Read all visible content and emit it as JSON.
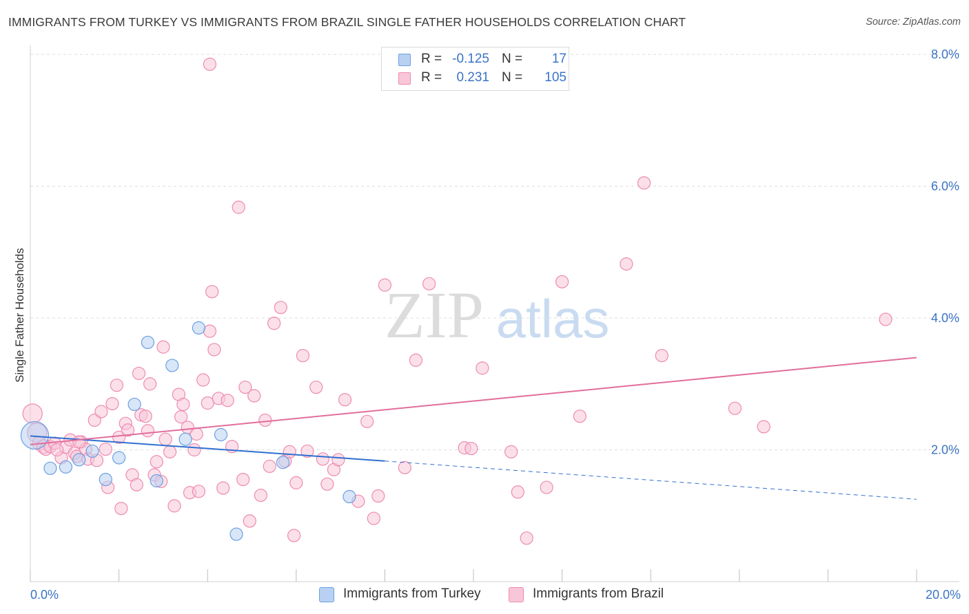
{
  "title": "IMMIGRANTS FROM TURKEY VS IMMIGRANTS FROM BRAZIL SINGLE FATHER HOUSEHOLDS CORRELATION CHART",
  "source": "Source: ZipAtlas.com",
  "watermark": {
    "zip": "ZIP",
    "atlas": "atlas"
  },
  "colors": {
    "turkey": "#6a9fe0",
    "turkey_fill": "#b8d1f3",
    "turkey_line": "#2f6fcf",
    "brazil": "#ee8ab0",
    "brazil_fill": "#f8c6d8",
    "brazil_line": "#e26d9a",
    "axis_text": "#3a73c4"
  },
  "legend": {
    "rows": [
      {
        "r_label": "R =",
        "r_value": "-0.125",
        "n_label": "N =",
        "n_value": "17"
      },
      {
        "r_label": "R =",
        "r_value": "0.231",
        "n_label": "N =",
        "n_value": "105"
      }
    ]
  },
  "bottom_legend": {
    "turkey": "Immigrants from Turkey",
    "brazil": "Immigrants from Brazil"
  },
  "chart_data": {
    "type": "scatter",
    "title": "IMMIGRANTS FROM TURKEY VS IMMIGRANTS FROM BRAZIL SINGLE FATHER HOUSEHOLDS CORRELATION CHART",
    "xlabel": "",
    "ylabel": "Single Father Households",
    "xlim": [
      0,
      20
    ],
    "ylim": [
      0,
      8.0
    ],
    "x_tick_labels": [
      "0.0%",
      "20.0%"
    ],
    "y_ticks": [
      2.0,
      4.0,
      6.0,
      8.0
    ],
    "y_tick_labels": [
      "2.0%",
      "4.0%",
      "6.0%",
      "8.0%"
    ],
    "grid": "horizontal dashed",
    "legend_position": "top-center",
    "series": [
      {
        "name": "Immigrants from Turkey",
        "R": -0.125,
        "N": 17,
        "trend": {
          "x0": 0,
          "y0": 2.21,
          "x1": 8.0,
          "y1": 1.83,
          "dashed_to_x": 20,
          "dashed_to_y": 1.25
        },
        "points": [
          [
            0.1,
            2.22,
            20
          ],
          [
            0.45,
            1.72,
            9
          ],
          [
            0.8,
            1.74,
            9
          ],
          [
            1.1,
            1.85,
            9
          ],
          [
            1.4,
            1.98,
            9
          ],
          [
            1.7,
            1.55,
            9
          ],
          [
            2.0,
            1.88,
            9
          ],
          [
            2.35,
            2.69,
            9
          ],
          [
            2.65,
            3.63,
            9
          ],
          [
            2.85,
            1.53,
            9
          ],
          [
            3.2,
            3.28,
            9
          ],
          [
            3.5,
            2.16,
            9
          ],
          [
            3.8,
            3.85,
            9
          ],
          [
            4.3,
            2.23,
            9
          ],
          [
            4.65,
            0.72,
            9
          ],
          [
            5.7,
            1.81,
            9
          ],
          [
            7.2,
            1.29,
            9
          ]
        ]
      },
      {
        "name": "Immigrants from Brazil",
        "R": 0.231,
        "N": 105,
        "trend": {
          "x0": 0,
          "y0": 2.08,
          "x1": 20,
          "y1": 3.4
        },
        "points": [
          [
            0.05,
            2.55,
            14
          ],
          [
            0.15,
            2.26,
            14
          ],
          [
            0.2,
            2.1,
            10
          ],
          [
            0.3,
            2.05,
            10
          ],
          [
            0.35,
            2.01,
            9
          ],
          [
            0.45,
            2.05,
            9
          ],
          [
            0.55,
            2.1,
            9
          ],
          [
            0.7,
            1.88,
            9
          ],
          [
            0.8,
            2.04,
            9
          ],
          [
            0.9,
            2.15,
            9
          ],
          [
            1.0,
            1.95,
            9
          ],
          [
            1.05,
            1.9,
            9
          ],
          [
            1.15,
            2.12,
            9
          ],
          [
            1.25,
            2.01,
            9
          ],
          [
            1.3,
            1.86,
            9
          ],
          [
            1.45,
            2.45,
            9
          ],
          [
            1.5,
            1.84,
            9
          ],
          [
            1.6,
            2.58,
            9
          ],
          [
            1.7,
            2.01,
            9
          ],
          [
            1.75,
            1.43,
            9
          ],
          [
            1.85,
            2.7,
            9
          ],
          [
            1.95,
            2.98,
            9
          ],
          [
            2.0,
            2.19,
            9
          ],
          [
            2.05,
            1.11,
            9
          ],
          [
            2.15,
            2.4,
            9
          ],
          [
            2.2,
            2.3,
            9
          ],
          [
            2.3,
            1.62,
            9
          ],
          [
            2.4,
            1.47,
            9
          ],
          [
            2.45,
            3.16,
            9
          ],
          [
            2.5,
            2.53,
            9
          ],
          [
            2.6,
            2.51,
            9
          ],
          [
            2.65,
            2.29,
            9
          ],
          [
            2.7,
            3.0,
            9
          ],
          [
            2.8,
            1.62,
            9
          ],
          [
            2.85,
            1.82,
            9
          ],
          [
            2.95,
            1.52,
            9
          ],
          [
            3.0,
            3.56,
            9
          ],
          [
            3.05,
            2.16,
            9
          ],
          [
            3.15,
            1.97,
            9
          ],
          [
            3.25,
            1.15,
            9
          ],
          [
            3.35,
            2.84,
            9
          ],
          [
            3.4,
            2.5,
            9
          ],
          [
            3.45,
            2.69,
            9
          ],
          [
            3.55,
            2.34,
            9
          ],
          [
            3.6,
            1.35,
            9
          ],
          [
            3.7,
            2.0,
            9
          ],
          [
            3.75,
            2.24,
            9
          ],
          [
            3.8,
            1.37,
            9
          ],
          [
            3.9,
            3.06,
            9
          ],
          [
            4.0,
            2.71,
            9
          ],
          [
            4.05,
            3.8,
            9
          ],
          [
            4.1,
            4.4,
            9
          ],
          [
            4.15,
            3.52,
            9
          ],
          [
            4.25,
            2.78,
            9
          ],
          [
            4.35,
            1.42,
            9
          ],
          [
            4.45,
            2.75,
            9
          ],
          [
            4.55,
            2.05,
            9
          ],
          [
            4.7,
            5.68,
            9
          ],
          [
            4.8,
            1.55,
            9
          ],
          [
            4.85,
            2.95,
            9
          ],
          [
            4.95,
            0.92,
            9
          ],
          [
            5.05,
            2.82,
            9
          ],
          [
            5.2,
            1.31,
            9
          ],
          [
            5.3,
            2.45,
            9
          ],
          [
            5.4,
            1.75,
            9
          ],
          [
            5.5,
            3.92,
            9
          ],
          [
            5.65,
            4.16,
            9
          ],
          [
            5.75,
            1.83,
            9
          ],
          [
            5.85,
            1.97,
            9
          ],
          [
            5.95,
            0.7,
            9
          ],
          [
            6.0,
            1.5,
            9
          ],
          [
            6.15,
            3.43,
            9
          ],
          [
            6.25,
            1.98,
            9
          ],
          [
            6.45,
            2.95,
            9
          ],
          [
            6.6,
            1.86,
            9
          ],
          [
            6.7,
            1.48,
            9
          ],
          [
            6.85,
            1.7,
            9
          ],
          [
            6.95,
            1.85,
            9
          ],
          [
            7.1,
            2.76,
            9
          ],
          [
            7.4,
            1.22,
            9
          ],
          [
            7.6,
            2.43,
            9
          ],
          [
            7.75,
            0.96,
            9
          ],
          [
            7.85,
            1.3,
            9
          ],
          [
            8.0,
            4.5,
            9
          ],
          [
            8.45,
            1.73,
            9
          ],
          [
            8.7,
            3.36,
            9
          ],
          [
            9.0,
            4.52,
            9
          ],
          [
            9.8,
            2.03,
            9
          ],
          [
            9.95,
            2.02,
            9
          ],
          [
            10.2,
            3.24,
            9
          ],
          [
            10.85,
            1.97,
            9
          ],
          [
            11.0,
            1.36,
            9
          ],
          [
            11.2,
            0.66,
            9
          ],
          [
            11.65,
            1.43,
            9
          ],
          [
            12.0,
            4.55,
            9
          ],
          [
            12.4,
            2.51,
            9
          ],
          [
            13.45,
            4.82,
            9
          ],
          [
            13.85,
            6.05,
            9
          ],
          [
            14.25,
            3.43,
            9
          ],
          [
            15.9,
            2.63,
            9
          ],
          [
            16.55,
            2.35,
            9
          ],
          [
            19.3,
            3.98,
            9
          ],
          [
            4.05,
            7.85,
            9
          ],
          [
            0.6,
            2.0,
            9
          ],
          [
            1.1,
            2.12,
            9
          ]
        ]
      }
    ]
  }
}
